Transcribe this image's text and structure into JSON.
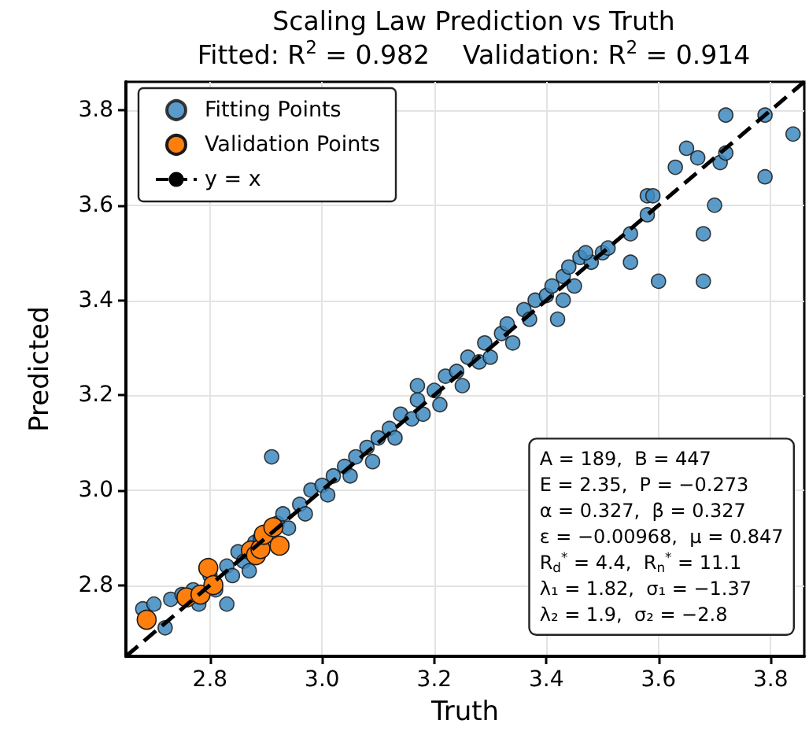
{
  "chart_data": {
    "type": "scatter",
    "title": "Scaling Law Prediction vs Truth",
    "subtitle": "Fitted: R$^{2}$ = 0.982    Validation: R$^{2}$ = 0.914",
    "xlabel": "Truth",
    "ylabel": "Predicted",
    "xlim": [
      2.65,
      3.86
    ],
    "ylim": [
      2.65,
      3.86
    ],
    "xticks": [
      2.8,
      {
        "value": 3.0,
        "label": "3.0"
      },
      3.2,
      3.4,
      3.6,
      3.8
    ],
    "yticks": [
      2.8,
      {
        "value": 3.0,
        "label": "3.0"
      },
      3.2,
      3.4,
      3.6,
      3.8
    ],
    "grid": true,
    "legend": "top left",
    "marker": "circle",
    "series": [
      {
        "name": "Fitting Points",
        "color": "#3e8ac0",
        "x": [
          2.68,
          2.7,
          2.72,
          2.73,
          2.75,
          2.77,
          2.78,
          2.8,
          2.81,
          2.83,
          2.84,
          2.85,
          2.86,
          2.87,
          2.88,
          2.89,
          2.92,
          2.93,
          2.94,
          2.96,
          2.97,
          2.98,
          3.0,
          3.01,
          3.02,
          3.04,
          3.05,
          3.06,
          3.08,
          3.09,
          3.1,
          3.12,
          3.13,
          3.14,
          3.16,
          3.17,
          3.18,
          3.2,
          3.21,
          3.22,
          3.24,
          3.25,
          3.26,
          3.28,
          3.29,
          3.3,
          3.32,
          3.33,
          3.34,
          3.36,
          3.37,
          3.38,
          3.4,
          3.41,
          3.43,
          3.44,
          3.46,
          3.48,
          3.5,
          2.83,
          3.17,
          2.91,
          3.42,
          3.43,
          3.45,
          3.47,
          3.51,
          3.55,
          3.55,
          3.58,
          3.58,
          3.59,
          3.6,
          3.63,
          3.65,
          3.67,
          3.68,
          3.68,
          3.7,
          3.71,
          3.72,
          3.72,
          3.79,
          3.79,
          3.84
        ],
        "values": [
          2.75,
          2.76,
          2.71,
          2.77,
          2.78,
          2.79,
          2.76,
          2.82,
          2.79,
          2.84,
          2.82,
          2.87,
          2.85,
          2.83,
          2.89,
          2.9,
          2.93,
          2.95,
          2.92,
          2.97,
          2.95,
          3.0,
          3.01,
          2.99,
          3.03,
          3.05,
          3.03,
          3.07,
          3.09,
          3.06,
          3.11,
          3.13,
          3.11,
          3.16,
          3.15,
          3.19,
          3.16,
          3.21,
          3.18,
          3.24,
          3.25,
          3.22,
          3.28,
          3.27,
          3.31,
          3.28,
          3.33,
          3.35,
          3.31,
          3.38,
          3.36,
          3.4,
          3.41,
          3.43,
          3.45,
          3.47,
          3.49,
          3.48,
          3.5,
          2.76,
          3.22,
          3.07,
          3.36,
          3.4,
          3.43,
          3.5,
          3.51,
          3.54,
          3.48,
          3.62,
          3.58,
          3.62,
          3.44,
          3.68,
          3.72,
          3.7,
          3.54,
          3.44,
          3.6,
          3.69,
          3.71,
          3.79,
          3.79,
          3.66,
          3.75
        ]
      },
      {
        "name": "Validation Points",
        "color": "#ff7f0e",
        "x": [
          2.687,
          2.758,
          2.783,
          2.797,
          2.806,
          2.873,
          2.882,
          2.89,
          2.896,
          2.913,
          2.924
        ],
        "values": [
          2.727,
          2.774,
          2.78,
          2.836,
          2.8,
          2.873,
          2.863,
          2.876,
          2.906,
          2.922,
          2.883
        ]
      },
      {
        "name": "y = x",
        "type": "line",
        "color": "#000000",
        "line_style": "dashed",
        "marker": "none",
        "x": [
          2.65,
          3.86
        ],
        "values": [
          2.65,
          3.86
        ]
      }
    ],
    "annotations": [
      "A = 189,  B = 447",
      "E = 2.35,  P = −0.273",
      "α = 0.327,  β = 0.327",
      "ε = −0.00968,  μ = 0.847",
      "R$_{d}$$^{*}$ = 4.4,  R$_{n}$$^{*}$ = 11.1",
      "λ₁ = 1.82,  σ₁ = −1.37",
      "λ₂ = 1.9,  σ₂ = −2.8"
    ]
  }
}
